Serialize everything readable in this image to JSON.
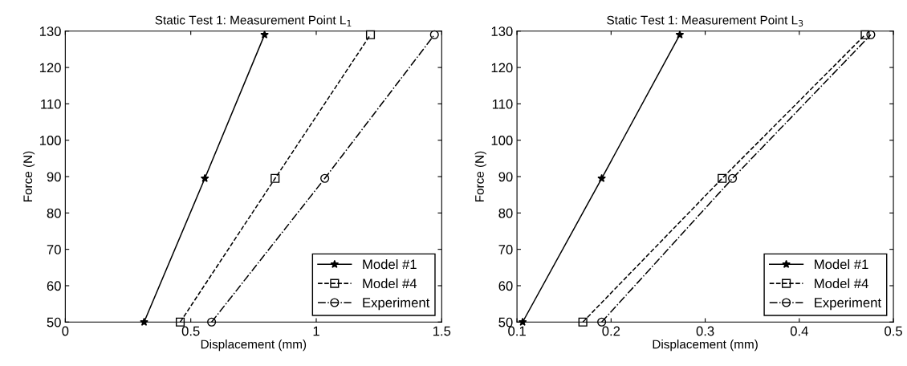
{
  "chart_data": [
    {
      "type": "line",
      "title": "Static Test 1: Measurement Point L$_{1}$",
      "xlabel": "Displacement (mm)",
      "ylabel": "Force (N)",
      "xlim": [
        0,
        1.5
      ],
      "xticks": [
        0,
        0.5,
        1,
        1.5
      ],
      "ylim": [
        50,
        130
      ],
      "yticks": [
        50,
        60,
        70,
        80,
        90,
        100,
        110,
        120,
        130
      ],
      "grid": false,
      "legend": "bottom right",
      "series": [
        {
          "name": "Model #1",
          "color": "#000000",
          "marker": "star",
          "line_style": "solid",
          "x": [
            0.314,
            0.556,
            0.794
          ],
          "values": [
            50,
            89.5,
            129
          ]
        },
        {
          "name": "Model #4",
          "color": "#000000",
          "marker": "square",
          "line_style": "dashed",
          "x": [
            0.458,
            0.836,
            1.216
          ],
          "values": [
            50,
            89.5,
            129
          ]
        },
        {
          "name": "Experiment",
          "color": "#000000",
          "marker": "circle",
          "line_style": "dashdot",
          "x": [
            0.583,
            1.034,
            1.471
          ],
          "values": [
            50,
            89.5,
            129
          ]
        }
      ]
    },
    {
      "type": "line",
      "title": "Static Test 1: Measurement Point L$_{3}$",
      "xlabel": "Displacement (mm)",
      "ylabel": "Force (N)",
      "xlim": [
        0.1,
        0.5
      ],
      "xticks": [
        0.1,
        0.2,
        0.3,
        0.4,
        0.5
      ],
      "ylim": [
        50,
        130
      ],
      "yticks": [
        50,
        60,
        70,
        80,
        90,
        100,
        110,
        120,
        130
      ],
      "grid": false,
      "legend": "bottom right",
      "series": [
        {
          "name": "Model #1",
          "color": "#000000",
          "marker": "star",
          "line_style": "solid",
          "x": [
            0.106,
            0.19,
            0.273
          ],
          "values": [
            50,
            89.5,
            129
          ]
        },
        {
          "name": "Model #4",
          "color": "#000000",
          "marker": "square",
          "line_style": "dashed",
          "x": [
            0.17,
            0.318,
            0.47
          ],
          "values": [
            50,
            89.5,
            129
          ]
        },
        {
          "name": "Experiment",
          "color": "#000000",
          "marker": "circle",
          "line_style": "dashdot",
          "x": [
            0.19,
            0.329,
            0.476
          ],
          "values": [
            50,
            89.5,
            129
          ]
        }
      ]
    }
  ]
}
